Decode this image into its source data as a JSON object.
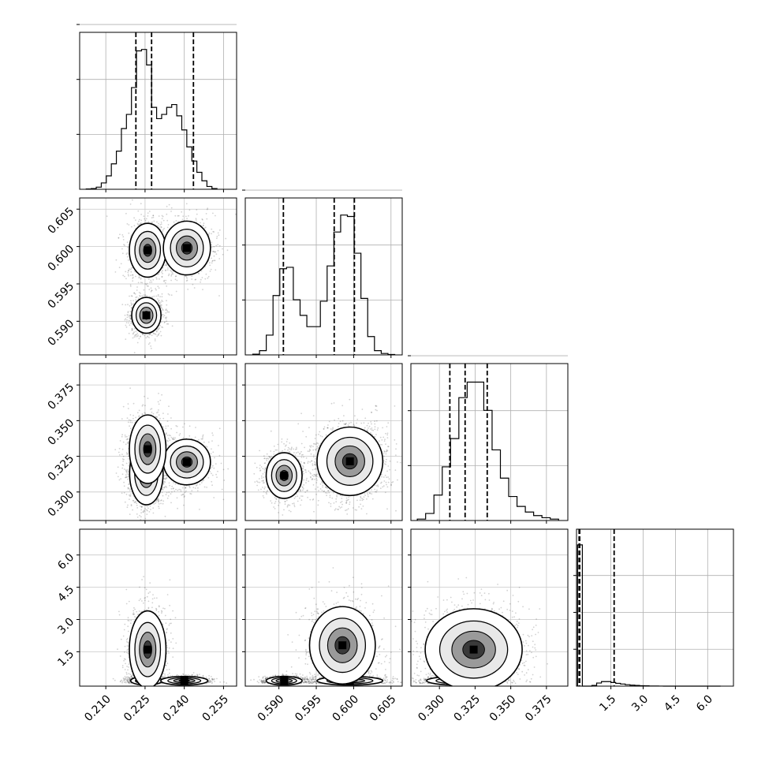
{
  "chart_data": {
    "type": "corner",
    "parameters": [
      {
        "range": [
          0.2,
          0.26
        ],
        "ticks": [
          "0.210",
          "0.225",
          "0.240",
          "0.255"
        ],
        "tick_values": [
          0.21,
          0.225,
          0.24,
          0.255
        ],
        "quantiles": [
          0.2215,
          0.2275,
          0.2435
        ],
        "hist": [
          0.2,
          0.5,
          1.5,
          4.5,
          9.5,
          18,
          27,
          43,
          53,
          72,
          98,
          99,
          88,
          58,
          50,
          53,
          58,
          60,
          52,
          42,
          30,
          20,
          12,
          6,
          2,
          0.5
        ]
      },
      {
        "range": [
          0.5855,
          0.6065
        ],
        "ticks": [
          "0.590",
          "0.595",
          "0.600",
          "0.605"
        ],
        "tick_values": [
          0.59,
          0.595,
          0.6,
          0.605
        ],
        "quantiles": [
          0.5906,
          0.5974,
          0.6001
        ],
        "hist": [
          0.5,
          3,
          14,
          42,
          61,
          62,
          39,
          28,
          20,
          20,
          38,
          63,
          87,
          99,
          98,
          72,
          40,
          13,
          3,
          1,
          0.3
        ]
      },
      {
        "range": [
          0.28,
          0.39
        ],
        "ticks": [
          "0.300",
          "0.325",
          "0.350",
          "0.375"
        ],
        "tick_values": [
          0.3,
          0.325,
          0.35,
          0.375
        ],
        "quantiles": [
          0.3073,
          0.318,
          0.3335
        ],
        "hist": [
          1,
          5,
          18,
          38,
          58,
          87,
          98,
          98,
          78,
          50,
          30,
          17,
          10,
          6,
          3.5,
          2,
          1
        ]
      },
      {
        "range": [
          -0.1,
          7.2
        ],
        "ticks": [
          "1.5",
          "3.0",
          "4.5",
          "6.0"
        ],
        "tick_values": [
          1.5,
          3.0,
          4.5,
          6.0
        ],
        "quantiles": [
          0.02,
          0.05,
          1.65
        ],
        "hist": [
          100,
          0,
          0,
          0.5,
          2.2,
          3.2,
          3.2,
          2.6,
          2.0,
          1.5,
          1.0,
          0.7,
          0.5,
          0.3,
          0.2,
          0.1,
          0.05,
          0.03,
          0,
          0,
          0,
          0,
          0,
          0,
          0,
          0,
          0,
          0,
          0,
          0
        ]
      }
    ],
    "scatter_clusters": [
      {
        "row": 1,
        "col": 0,
        "blobs": [
          {
            "x": 0.226,
            "y": 0.5995,
            "sx": 0.0035,
            "sy": 0.0018,
            "w": 0.35
          },
          {
            "x": 0.241,
            "y": 0.5998,
            "sx": 0.0045,
            "sy": 0.0018,
            "w": 0.3
          },
          {
            "x": 0.2255,
            "y": 0.5908,
            "sx": 0.0028,
            "sy": 0.0012,
            "w": 0.35
          }
        ]
      },
      {
        "row": 2,
        "col": 0,
        "blobs": [
          {
            "x": 0.2255,
            "y": 0.313,
            "sx": 0.0032,
            "sy": 0.011,
            "w": 0.4
          },
          {
            "x": 0.241,
            "y": 0.321,
            "sx": 0.0045,
            "sy": 0.008,
            "w": 0.3
          },
          {
            "x": 0.226,
            "y": 0.33,
            "sx": 0.0035,
            "sy": 0.012,
            "w": 0.3
          }
        ]
      },
      {
        "row": 2,
        "col": 1,
        "blobs": [
          {
            "x": 0.5907,
            "y": 0.3115,
            "sx": 0.0012,
            "sy": 0.008,
            "w": 0.35
          },
          {
            "x": 0.5995,
            "y": 0.3215,
            "sx": 0.0022,
            "sy": 0.012,
            "w": 0.65
          }
        ]
      },
      {
        "row": 3,
        "col": 0,
        "blobs": [
          {
            "x": 0.2255,
            "y": 0.15,
            "sx": 0.003,
            "sy": 0.1,
            "w": 0.35
          },
          {
            "x": 0.24,
            "y": 0.15,
            "sx": 0.0045,
            "sy": 0.1,
            "w": 0.3
          },
          {
            "x": 0.226,
            "y": 1.6,
            "sx": 0.0035,
            "sy": 0.9,
            "w": 0.35
          }
        ]
      },
      {
        "row": 3,
        "col": 1,
        "blobs": [
          {
            "x": 0.5907,
            "y": 0.15,
            "sx": 0.0012,
            "sy": 0.1,
            "w": 0.35
          },
          {
            "x": 0.5995,
            "y": 0.15,
            "sx": 0.0022,
            "sy": 0.1,
            "w": 0.3
          },
          {
            "x": 0.5985,
            "y": 1.8,
            "sx": 0.0022,
            "sy": 0.9,
            "w": 0.35
          }
        ]
      },
      {
        "row": 3,
        "col": 2,
        "blobs": [
          {
            "x": 0.313,
            "y": 0.15,
            "sx": 0.011,
            "sy": 0.1,
            "w": 0.5
          },
          {
            "x": 0.324,
            "y": 1.6,
            "sx": 0.017,
            "sy": 0.95,
            "w": 0.5
          }
        ]
      }
    ],
    "grid": true
  }
}
